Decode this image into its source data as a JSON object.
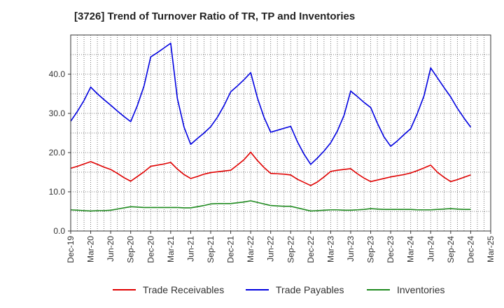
{
  "chart_data": {
    "type": "line",
    "title": "[3726]  Trend of Turnover Ratio of TR, TP and Inventories",
    "xlabel": "",
    "ylabel": "",
    "ylim": [
      0,
      50
    ],
    "y_ticks": [
      "0.0",
      "10.0",
      "20.0",
      "30.0",
      "40.0"
    ],
    "x_ticks": [
      "Dec-19",
      "Mar-20",
      "Jun-20",
      "Sep-20",
      "Dec-20",
      "Mar-21",
      "Jun-21",
      "Sep-21",
      "Dec-21",
      "Mar-22",
      "Jun-22",
      "Sep-22",
      "Dec-22",
      "Mar-23",
      "Jun-23",
      "Sep-23",
      "Dec-23",
      "Mar-24",
      "Jun-24",
      "Sep-24",
      "Dec-24",
      "Mar-25"
    ],
    "x": [
      "2019-12",
      "2020-01",
      "2020-02",
      "2020-03",
      "2020-04",
      "2020-05",
      "2020-06",
      "2020-07",
      "2020-08",
      "2020-09",
      "2020-10",
      "2020-11",
      "2020-12",
      "2021-01",
      "2021-02",
      "2021-03",
      "2021-04",
      "2021-05",
      "2021-06",
      "2021-07",
      "2021-08",
      "2021-09",
      "2021-10",
      "2021-11",
      "2021-12",
      "2022-01",
      "2022-02",
      "2022-03",
      "2022-04",
      "2022-05",
      "2022-06",
      "2022-07",
      "2022-08",
      "2022-09",
      "2022-10",
      "2022-11",
      "2022-12",
      "2023-01",
      "2023-02",
      "2023-03",
      "2023-04",
      "2023-05",
      "2023-06",
      "2023-07",
      "2023-08",
      "2023-09",
      "2023-10",
      "2023-11",
      "2023-12",
      "2024-01",
      "2024-02",
      "2024-03",
      "2024-04",
      "2024-05",
      "2024-06",
      "2024-07",
      "2024-08",
      "2024-09",
      "2024-10",
      "2024-11",
      "2024-12"
    ],
    "series": [
      {
        "name": "Trade Receivables",
        "color": "#e00000",
        "values": [
          16.0,
          16.5,
          17.1,
          17.7,
          17.0,
          16.3,
          15.7,
          14.7,
          13.6,
          12.7,
          13.9,
          15.1,
          16.5,
          16.8,
          17.1,
          17.5,
          15.8,
          14.4,
          13.4,
          13.9,
          14.5,
          14.9,
          15.1,
          15.3,
          15.5,
          16.8,
          18.2,
          20.1,
          18.0,
          16.2,
          14.7,
          14.6,
          14.5,
          14.3,
          13.2,
          12.4,
          11.6,
          12.5,
          13.8,
          15.2,
          15.5,
          15.7,
          15.9,
          14.6,
          13.5,
          12.6,
          13.0,
          13.4,
          13.8,
          14.1,
          14.4,
          14.8,
          15.4,
          16.1,
          16.8,
          15.0,
          13.7,
          12.6,
          13.1,
          13.7,
          14.3
        ]
      },
      {
        "name": "Trade Payables",
        "color": "#0000e0",
        "values": [
          28.0,
          30.5,
          33.3,
          36.7,
          35.0,
          33.5,
          32.1,
          30.6,
          29.2,
          27.9,
          32.0,
          37.0,
          44.4,
          45.5,
          46.7,
          47.9,
          33.8,
          26.5,
          22.1,
          23.6,
          25.0,
          26.6,
          29.0,
          32.0,
          35.5,
          37.0,
          38.6,
          40.4,
          34.0,
          29.0,
          25.2,
          25.7,
          26.2,
          26.7,
          22.8,
          19.6,
          17.0,
          18.6,
          20.4,
          22.5,
          25.5,
          29.5,
          35.7,
          34.3,
          32.8,
          31.5,
          27.5,
          24.0,
          21.6,
          23.0,
          24.6,
          26.1,
          30.0,
          34.5,
          41.6,
          39.1,
          36.6,
          34.2,
          31.3,
          28.8,
          26.5
        ]
      },
      {
        "name": "Inventories",
        "color": "#1f8a1f",
        "values": [
          5.4,
          5.3,
          5.2,
          5.1,
          5.2,
          5.2,
          5.3,
          5.6,
          5.9,
          6.2,
          6.1,
          6.0,
          6.0,
          6.0,
          6.0,
          6.0,
          6.0,
          5.9,
          5.9,
          6.2,
          6.5,
          6.9,
          7.0,
          7.0,
          7.0,
          7.2,
          7.4,
          7.7,
          7.3,
          6.9,
          6.5,
          6.4,
          6.3,
          6.3,
          5.9,
          5.5,
          5.1,
          5.2,
          5.3,
          5.4,
          5.4,
          5.3,
          5.3,
          5.4,
          5.5,
          5.7,
          5.6,
          5.5,
          5.5,
          5.5,
          5.5,
          5.5,
          5.4,
          5.4,
          5.4,
          5.5,
          5.6,
          5.7,
          5.6,
          5.5,
          5.5
        ]
      }
    ],
    "grid": true,
    "legend_position": "bottom"
  }
}
